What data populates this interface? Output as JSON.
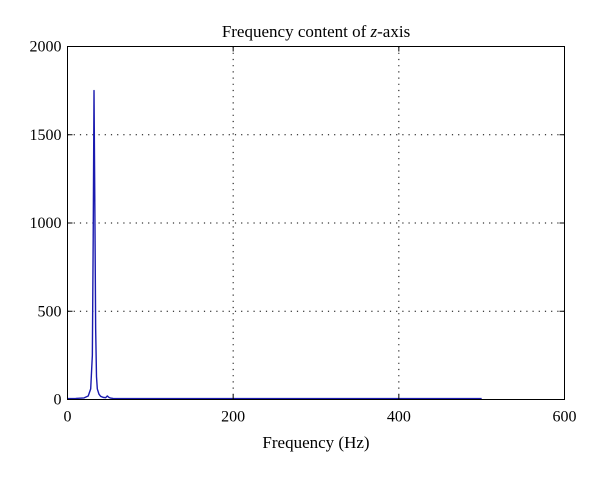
{
  "chart_data": {
    "type": "line",
    "title": {
      "before": "Frequency content of ",
      "italic": "z",
      "after": "-axis"
    },
    "xlabel": "Frequency (Hz)",
    "ylabel": "",
    "xlim": [
      0,
      600
    ],
    "ylim": [
      0,
      2000
    ],
    "xticks": [
      0,
      200,
      400,
      600
    ],
    "yticks": [
      0,
      500,
      1000,
      1500,
      2000
    ],
    "xtick_labels": [
      "0",
      "200",
      "400",
      "600"
    ],
    "ytick_labels": [
      "0",
      "500",
      "1000",
      "1500",
      "2000"
    ],
    "grid": true,
    "series": [
      {
        "color": "#1a1aaf",
        "x": [
          0,
          10,
          20,
          25,
          28,
          30,
          31,
          32,
          33,
          34,
          35,
          36,
          38,
          40,
          43,
          46,
          48,
          50,
          52,
          55,
          60,
          100,
          200,
          300,
          400,
          500
        ],
        "y": [
          5,
          6,
          9,
          20,
          60,
          250,
          900,
          1750,
          1100,
          400,
          130,
          60,
          30,
          18,
          12,
          10,
          20,
          12,
          8,
          6,
          5,
          5,
          5,
          5,
          5,
          5
        ]
      }
    ]
  }
}
